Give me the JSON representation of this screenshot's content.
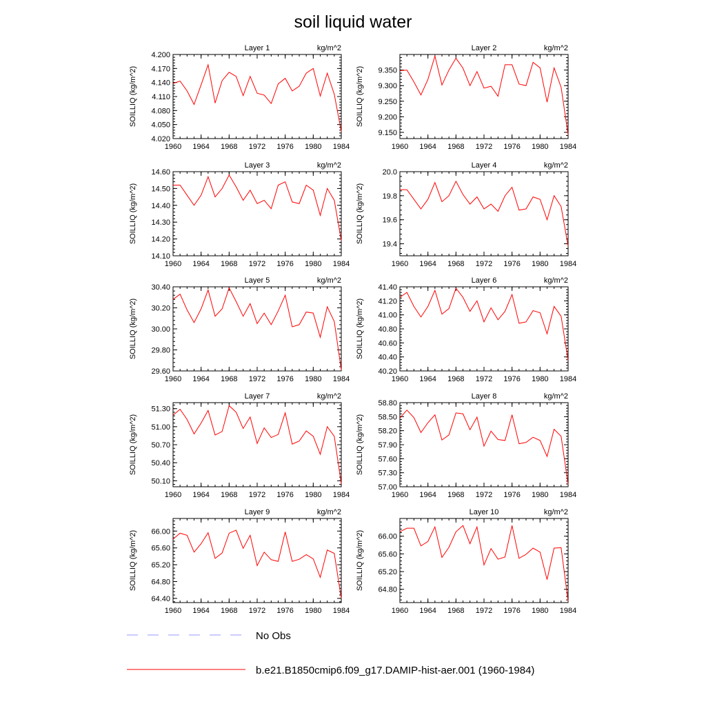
{
  "title": "soil liquid water",
  "chart_data": [
    {
      "type": "line",
      "title": "Layer 1",
      "units": "kg/m^2",
      "ylabel": "SOILLIQ  (kg/m^2)",
      "x": [
        1960,
        1961,
        1962,
        1963,
        1964,
        1965,
        1966,
        1967,
        1968,
        1969,
        1970,
        1971,
        1972,
        1973,
        1974,
        1975,
        1976,
        1977,
        1978,
        1979,
        1980,
        1981,
        1982,
        1983,
        1984
      ],
      "series": [
        {
          "values": [
            4.138,
            4.143,
            4.122,
            4.093,
            4.135,
            4.178,
            4.096,
            4.144,
            4.162,
            4.153,
            4.112,
            4.153,
            4.117,
            4.113,
            4.095,
            4.137,
            4.149,
            4.122,
            4.132,
            4.16,
            4.17,
            4.111,
            4.16,
            4.115,
            4.035
          ],
          "color": "#ff0000"
        }
      ],
      "xlim": [
        1960,
        1984
      ],
      "ylim": [
        4.02,
        4.2
      ],
      "xticks": [
        1960,
        1964,
        1968,
        1972,
        1976,
        1980,
        1984
      ],
      "yticks": [
        4.02,
        4.05,
        4.08,
        4.11,
        4.14,
        4.17,
        4.2
      ],
      "ytick_labels": [
        "4.020",
        "4.050",
        "4.080",
        "4.110",
        "4.140",
        "4.170",
        "4.200"
      ]
    },
    {
      "type": "line",
      "title": "Layer 2",
      "units": "kg/m^2",
      "ylabel": "SOILLIQ  (kg/m^2)",
      "x": [
        1960,
        1961,
        1962,
        1963,
        1964,
        1965,
        1966,
        1967,
        1968,
        1969,
        1970,
        1971,
        1972,
        1973,
        1974,
        1975,
        1976,
        1977,
        1978,
        1979,
        1980,
        1981,
        1982,
        1983,
        1984
      ],
      "series": [
        {
          "values": [
            9.348,
            9.35,
            9.312,
            9.27,
            9.32,
            9.395,
            9.302,
            9.35,
            9.388,
            9.356,
            9.3,
            9.345,
            9.292,
            9.298,
            9.266,
            9.367,
            9.367,
            9.305,
            9.3,
            9.375,
            9.357,
            9.247,
            9.357,
            9.295,
            9.142
          ],
          "color": "#ff0000"
        }
      ],
      "xlim": [
        1960,
        1984
      ],
      "ylim": [
        9.13,
        9.4
      ],
      "xticks": [
        1960,
        1964,
        1968,
        1972,
        1976,
        1980,
        1984
      ],
      "yticks": [
        9.15,
        9.2,
        9.25,
        9.3,
        9.35
      ],
      "ytick_labels": [
        "9.150",
        "9.200",
        "9.250",
        "9.300",
        "9.350"
      ]
    },
    {
      "type": "line",
      "title": "Layer 3",
      "units": "kg/m^2",
      "ylabel": "SOILLIQ  (kg/m^2)",
      "x": [
        1960,
        1961,
        1962,
        1963,
        1964,
        1965,
        1966,
        1967,
        1968,
        1969,
        1970,
        1971,
        1972,
        1973,
        1974,
        1975,
        1976,
        1977,
        1978,
        1979,
        1980,
        1981,
        1982,
        1983,
        1984
      ],
      "series": [
        {
          "values": [
            14.52,
            14.52,
            14.46,
            14.4,
            14.46,
            14.57,
            14.45,
            14.5,
            14.58,
            14.51,
            14.43,
            14.49,
            14.41,
            14.43,
            14.38,
            14.52,
            14.54,
            14.42,
            14.41,
            14.52,
            14.49,
            14.34,
            14.5,
            14.43,
            14.19
          ],
          "color": "#ff0000"
        }
      ],
      "xlim": [
        1960,
        1984
      ],
      "ylim": [
        14.1,
        14.6
      ],
      "xticks": [
        1960,
        1964,
        1968,
        1972,
        1976,
        1980,
        1984
      ],
      "yticks": [
        14.1,
        14.2,
        14.3,
        14.4,
        14.5,
        14.6
      ],
      "ytick_labels": [
        "14.10",
        "14.20",
        "14.30",
        "14.40",
        "14.50",
        "14.60"
      ]
    },
    {
      "type": "line",
      "title": "Layer 4",
      "units": "kg/m^2",
      "ylabel": "SOILLIQ  (kg/m^2)",
      "x": [
        1960,
        1961,
        1962,
        1963,
        1964,
        1965,
        1966,
        1967,
        1968,
        1969,
        1970,
        1971,
        1972,
        1973,
        1974,
        1975,
        1976,
        1977,
        1978,
        1979,
        1980,
        1981,
        1982,
        1983,
        1984
      ],
      "series": [
        {
          "values": [
            19.85,
            19.85,
            19.77,
            19.69,
            19.77,
            19.91,
            19.75,
            19.8,
            19.92,
            19.81,
            19.73,
            19.79,
            19.69,
            19.73,
            19.67,
            19.8,
            19.87,
            19.68,
            19.69,
            19.79,
            19.77,
            19.6,
            19.8,
            19.71,
            19.38
          ],
          "color": "#ff0000"
        }
      ],
      "xlim": [
        1960,
        1984
      ],
      "ylim": [
        19.3,
        20.0
      ],
      "xticks": [
        1960,
        1964,
        1968,
        1972,
        1976,
        1980,
        1984
      ],
      "yticks": [
        19.4,
        19.6,
        19.8,
        20.0
      ],
      "ytick_labels": [
        "19.4",
        "19.6",
        "19.8",
        "20.0"
      ]
    },
    {
      "type": "line",
      "title": "Layer 5",
      "units": "kg/m^2",
      "ylabel": "SOILLIQ  (kg/m^2)",
      "x": [
        1960,
        1961,
        1962,
        1963,
        1964,
        1965,
        1966,
        1967,
        1968,
        1969,
        1970,
        1971,
        1972,
        1973,
        1974,
        1975,
        1976,
        1977,
        1978,
        1979,
        1980,
        1981,
        1982,
        1983,
        1984
      ],
      "series": [
        {
          "values": [
            30.28,
            30.33,
            30.18,
            30.06,
            30.19,
            30.37,
            30.12,
            30.19,
            30.39,
            30.26,
            30.12,
            30.24,
            30.05,
            30.15,
            30.04,
            30.17,
            30.32,
            30.02,
            30.04,
            30.16,
            30.15,
            29.92,
            30.21,
            30.07,
            29.61
          ],
          "color": "#ff0000"
        }
      ],
      "xlim": [
        1960,
        1984
      ],
      "ylim": [
        29.6,
        30.4
      ],
      "xticks": [
        1960,
        1964,
        1968,
        1972,
        1976,
        1980,
        1984
      ],
      "yticks": [
        29.6,
        29.8,
        30.0,
        30.2,
        30.4
      ],
      "ytick_labels": [
        "29.60",
        "29.80",
        "30.00",
        "30.20",
        "30.40"
      ]
    },
    {
      "type": "line",
      "title": "Layer 6",
      "units": "kg/m^2",
      "ylabel": "SOILLIQ  (kg/m^2)",
      "x": [
        1960,
        1961,
        1962,
        1963,
        1964,
        1965,
        1966,
        1967,
        1968,
        1969,
        1970,
        1971,
        1972,
        1973,
        1974,
        1975,
        1976,
        1977,
        1978,
        1979,
        1980,
        1981,
        1982,
        1983,
        1984
      ],
      "series": [
        {
          "values": [
            41.25,
            41.32,
            41.12,
            40.97,
            41.12,
            41.35,
            41.01,
            41.09,
            41.38,
            41.25,
            41.05,
            41.2,
            40.9,
            41.1,
            40.93,
            41.05,
            41.29,
            40.88,
            40.9,
            41.06,
            41.03,
            40.73,
            41.12,
            40.98,
            40.35
          ],
          "color": "#ff0000"
        }
      ],
      "xlim": [
        1960,
        1984
      ],
      "ylim": [
        40.2,
        41.4
      ],
      "xticks": [
        1960,
        1964,
        1968,
        1972,
        1976,
        1980,
        1984
      ],
      "yticks": [
        40.2,
        40.4,
        40.6,
        40.8,
        41.0,
        41.2,
        41.4
      ],
      "ytick_labels": [
        "40.20",
        "40.40",
        "40.60",
        "40.80",
        "41.00",
        "41.20",
        "41.40"
      ]
    },
    {
      "type": "line",
      "title": "Layer 7",
      "units": "kg/m^2",
      "ylabel": "SOILLIQ  (kg/m^2)",
      "x": [
        1960,
        1961,
        1962,
        1963,
        1964,
        1965,
        1966,
        1967,
        1968,
        1969,
        1970,
        1971,
        1972,
        1973,
        1974,
        1975,
        1976,
        1977,
        1978,
        1979,
        1980,
        1981,
        1982,
        1983,
        1984
      ],
      "series": [
        {
          "values": [
            51.19,
            51.29,
            51.12,
            50.88,
            51.06,
            51.27,
            50.86,
            50.92,
            51.35,
            51.24,
            50.97,
            51.16,
            50.72,
            50.98,
            50.82,
            50.87,
            51.23,
            50.71,
            50.76,
            50.93,
            50.84,
            50.54,
            51.0,
            50.84,
            50.05
          ],
          "color": "#ff0000"
        }
      ],
      "xlim": [
        1960,
        1984
      ],
      "ylim": [
        50.0,
        51.4
      ],
      "xticks": [
        1960,
        1964,
        1968,
        1972,
        1976,
        1980,
        1984
      ],
      "yticks": [
        50.1,
        50.4,
        50.7,
        51.0,
        51.3
      ],
      "ytick_labels": [
        "50.10",
        "50.40",
        "50.70",
        "51.00",
        "51.30"
      ]
    },
    {
      "type": "line",
      "title": "Layer 8",
      "units": "kg/m^2",
      "ylabel": "SOILLIQ  (kg/m^2)",
      "x": [
        1960,
        1961,
        1962,
        1963,
        1964,
        1965,
        1966,
        1967,
        1968,
        1969,
        1970,
        1971,
        1972,
        1973,
        1974,
        1975,
        1976,
        1977,
        1978,
        1979,
        1980,
        1981,
        1982,
        1983,
        1984
      ],
      "series": [
        {
          "values": [
            58.47,
            58.64,
            58.48,
            58.16,
            58.37,
            58.54,
            58.0,
            58.11,
            58.58,
            58.56,
            58.22,
            58.49,
            57.87,
            58.19,
            58.01,
            57.99,
            58.54,
            57.92,
            57.95,
            58.06,
            57.99,
            57.65,
            58.23,
            58.08,
            57.05
          ],
          "color": "#ff0000"
        }
      ],
      "xlim": [
        1960,
        1984
      ],
      "ylim": [
        57.0,
        58.8
      ],
      "xticks": [
        1960,
        1964,
        1968,
        1972,
        1976,
        1980,
        1984
      ],
      "yticks": [
        57.0,
        57.3,
        57.6,
        57.9,
        58.2,
        58.5,
        58.8
      ],
      "ytick_labels": [
        "57.00",
        "57.30",
        "57.60",
        "57.90",
        "58.20",
        "58.50",
        "58.80"
      ]
    },
    {
      "type": "line",
      "title": "Layer 9",
      "units": "kg/m^2",
      "ylabel": "SOILLIQ  (kg/m^2)",
      "x": [
        1960,
        1961,
        1962,
        1963,
        1964,
        1965,
        1966,
        1967,
        1968,
        1969,
        1970,
        1971,
        1972,
        1973,
        1974,
        1975,
        1976,
        1977,
        1978,
        1979,
        1980,
        1981,
        1982,
        1983,
        1984
      ],
      "series": [
        {
          "values": [
            65.81,
            65.95,
            65.9,
            65.5,
            65.7,
            65.96,
            65.35,
            65.48,
            65.95,
            66.02,
            65.59,
            65.9,
            65.18,
            65.5,
            65.32,
            65.28,
            65.98,
            65.28,
            65.33,
            65.44,
            65.34,
            64.9,
            65.55,
            65.47,
            64.4
          ],
          "color": "#ff0000"
        }
      ],
      "xlim": [
        1960,
        1984
      ],
      "ylim": [
        64.3,
        66.3
      ],
      "xticks": [
        1960,
        1964,
        1968,
        1972,
        1976,
        1980,
        1984
      ],
      "yticks": [
        64.4,
        64.8,
        65.2,
        65.6,
        66.0
      ],
      "ytick_labels": [
        "64.40",
        "64.80",
        "65.20",
        "65.60",
        "66.00"
      ]
    },
    {
      "type": "line",
      "title": "Layer 10",
      "units": "kg/m^2",
      "ylabel": "SOILLIQ  (kg/m^2)",
      "x": [
        1960,
        1961,
        1962,
        1963,
        1964,
        1965,
        1966,
        1967,
        1968,
        1969,
        1970,
        1971,
        1972,
        1973,
        1974,
        1975,
        1976,
        1977,
        1978,
        1979,
        1980,
        1981,
        1982,
        1983,
        1984
      ],
      "series": [
        {
          "values": [
            66.1,
            66.18,
            66.18,
            65.78,
            65.88,
            66.21,
            65.52,
            65.75,
            66.1,
            66.24,
            65.83,
            66.21,
            65.35,
            65.72,
            65.48,
            65.53,
            66.24,
            65.5,
            65.59,
            65.73,
            65.64,
            65.02,
            65.73,
            65.74,
            64.53
          ],
          "color": "#ff0000"
        }
      ],
      "xlim": [
        1960,
        1984
      ],
      "ylim": [
        64.5,
        66.4
      ],
      "xticks": [
        1960,
        1964,
        1968,
        1972,
        1976,
        1980,
        1984
      ],
      "yticks": [
        64.8,
        65.2,
        65.6,
        66.0
      ],
      "ytick_labels": [
        "64.80",
        "65.20",
        "65.60",
        "66.00"
      ]
    }
  ],
  "legend": [
    {
      "label": "No Obs",
      "color": "#9999ff",
      "dashed": true
    },
    {
      "label": "b.e21.B1850cmip6.f09_g17.DAMIP-hist-aer.001 (1960-1984)",
      "color": "#ff0000",
      "dashed": false
    }
  ]
}
